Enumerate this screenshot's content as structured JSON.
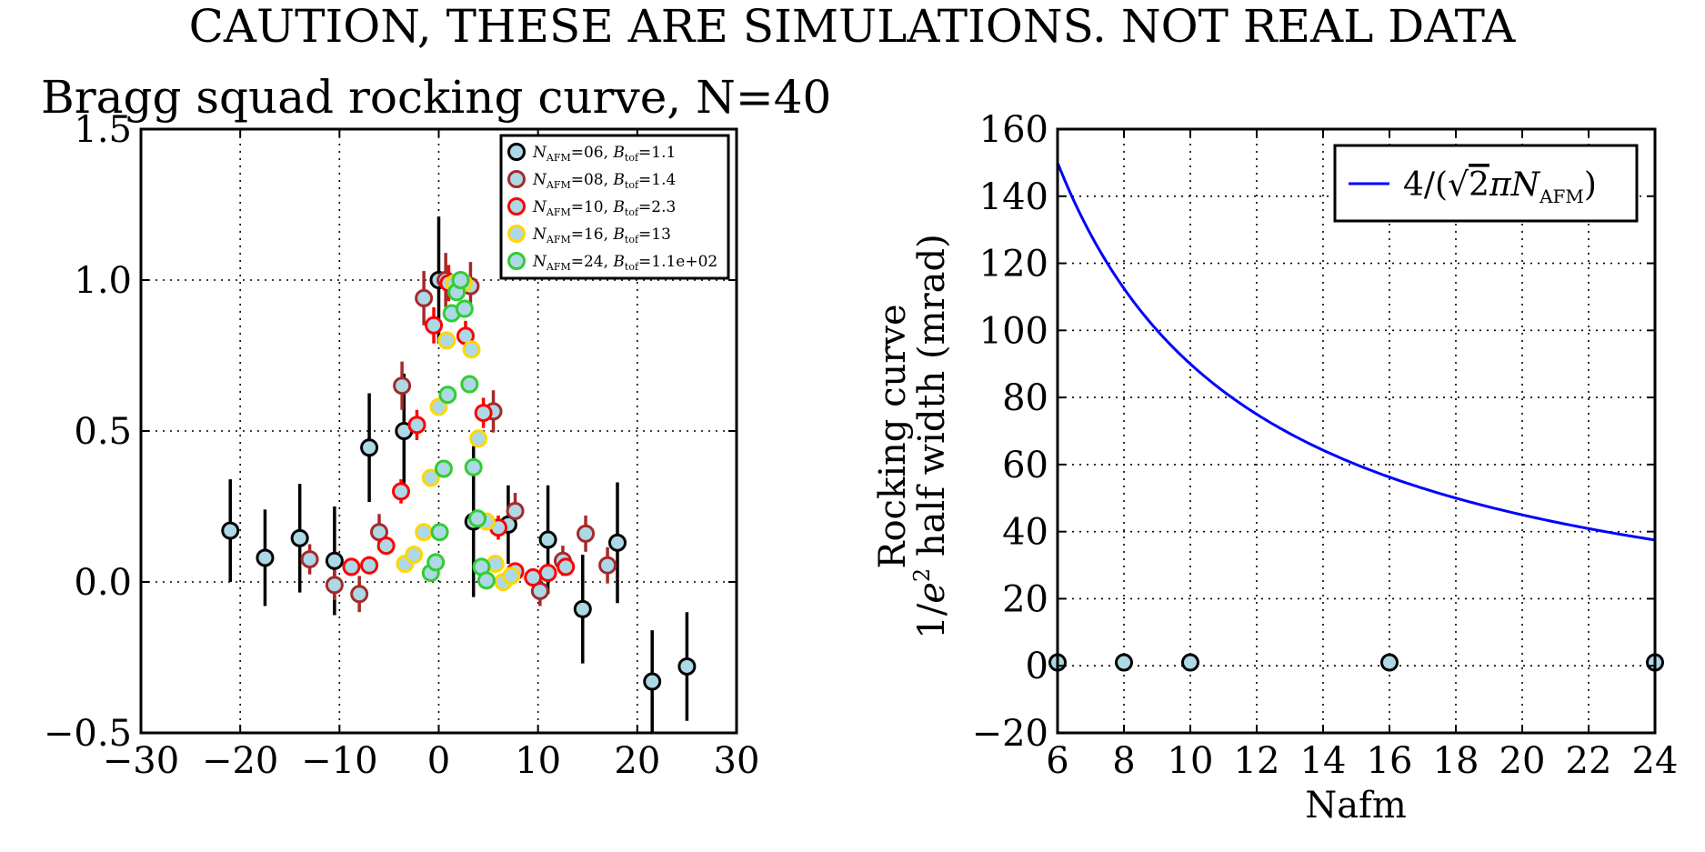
{
  "figure": {
    "suptitle": "CAUTION, THESE ARE SIMULATIONS. NOT REAL DATA"
  },
  "chart_data": [
    {
      "type": "scatter",
      "title": "Bragg squad rocking curve, N=40",
      "xlabel": "",
      "ylabel": "",
      "xlim": [
        -30,
        30
      ],
      "ylim": [
        -0.5,
        1.5
      ],
      "xticks": [
        -30,
        -20,
        -10,
        0,
        10,
        20,
        30
      ],
      "yticks": [
        -0.5,
        0.0,
        0.5,
        1.0,
        1.5
      ],
      "xtick_labels": [
        "−30",
        "−20",
        "−10",
        "0",
        "10",
        "20",
        "30"
      ],
      "ytick_labels": [
        "−0.5",
        "0.0",
        "0.5",
        "1.0",
        "1.5"
      ],
      "grid": true,
      "legend_position": "top-right",
      "series": [
        {
          "name": "N_AFM=06, B_tof=1.1",
          "legend_label": {
            "pre": "N",
            "sub1": "AFM",
            "mid": "=06, ",
            "sym": "B",
            "sub2": "tof",
            "post": "=1.1"
          },
          "edge_color": "#000000",
          "face_color": "#add8e6",
          "points": [
            {
              "x": -21.0,
              "y": 0.17,
              "err": 0.17
            },
            {
              "x": -17.5,
              "y": 0.08,
              "err": 0.16
            },
            {
              "x": -14.0,
              "y": 0.145,
              "err": 0.18
            },
            {
              "x": -10.5,
              "y": 0.07,
              "err": 0.18
            },
            {
              "x": -7.0,
              "y": 0.445,
              "err": 0.18
            },
            {
              "x": -3.5,
              "y": 0.5,
              "err": 0.19
            },
            {
              "x": 0.0,
              "y": 1.0,
              "err": 0.21
            },
            {
              "x": 3.5,
              "y": 0.2,
              "err": 0.25
            },
            {
              "x": 7.0,
              "y": 0.19,
              "err": 0.13
            },
            {
              "x": 11.0,
              "y": 0.14,
              "err": 0.18
            },
            {
              "x": 14.5,
              "y": -0.09,
              "err": 0.18
            },
            {
              "x": 18.0,
              "y": 0.13,
              "err": 0.2
            },
            {
              "x": 21.5,
              "y": -0.33,
              "err": 0.17
            },
            {
              "x": 25.0,
              "y": -0.28,
              "err": 0.18
            }
          ]
        },
        {
          "name": "N_AFM=08, B_tof=1.4",
          "legend_label": {
            "pre": "N",
            "sub1": "AFM",
            "mid": "=08, ",
            "sym": "B",
            "sub2": "tof",
            "post": "=1.4"
          },
          "edge_color": "#a52a2a",
          "face_color": "#add8e6",
          "points": [
            {
              "x": -13.0,
              "y": 0.075,
              "err": 0.05
            },
            {
              "x": -10.5,
              "y": -0.01,
              "err": 0.05
            },
            {
              "x": -8.0,
              "y": -0.04,
              "err": 0.06
            },
            {
              "x": -6.0,
              "y": 0.165,
              "err": 0.06
            },
            {
              "x": -3.7,
              "y": 0.65,
              "err": 0.08
            },
            {
              "x": -1.5,
              "y": 0.94,
              "err": 0.09
            },
            {
              "x": 0.7,
              "y": 1.0,
              "err": 0.09
            },
            {
              "x": 3.2,
              "y": 0.98,
              "err": 0.08
            },
            {
              "x": 5.5,
              "y": 0.565,
              "err": 0.07
            },
            {
              "x": 7.7,
              "y": 0.235,
              "err": 0.06
            },
            {
              "x": 10.2,
              "y": -0.03,
              "err": 0.05
            },
            {
              "x": 12.5,
              "y": 0.07,
              "err": 0.05
            },
            {
              "x": 14.8,
              "y": 0.16,
              "err": 0.06
            },
            {
              "x": 17.0,
              "y": 0.055,
              "err": 0.06
            }
          ]
        },
        {
          "name": "N_AFM=10, B_tof=2.3",
          "legend_label": {
            "pre": "N",
            "sub1": "AFM",
            "mid": "=10, ",
            "sym": "B",
            "sub2": "tof",
            "post": "=2.3"
          },
          "edge_color": "#ff0000",
          "face_color": "#add8e6",
          "points": [
            {
              "x": -8.8,
              "y": 0.05,
              "err": 0.03
            },
            {
              "x": -7.0,
              "y": 0.055,
              "err": 0.03
            },
            {
              "x": -5.3,
              "y": 0.12,
              "err": 0.03
            },
            {
              "x": -3.8,
              "y": 0.3,
              "err": 0.04
            },
            {
              "x": -2.2,
              "y": 0.52,
              "err": 0.05
            },
            {
              "x": -0.5,
              "y": 0.85,
              "err": 0.06
            },
            {
              "x": 1.0,
              "y": 0.99,
              "err": 0.06
            },
            {
              "x": 2.7,
              "y": 0.815,
              "err": 0.05
            },
            {
              "x": 4.5,
              "y": 0.56,
              "err": 0.05
            },
            {
              "x": 6.0,
              "y": 0.18,
              "err": 0.04
            },
            {
              "x": 7.7,
              "y": 0.035,
              "err": 0.03
            },
            {
              "x": 9.5,
              "y": 0.015,
              "err": 0.03
            },
            {
              "x": 11.0,
              "y": 0.03,
              "err": 0.03
            },
            {
              "x": 12.8,
              "y": 0.05,
              "err": 0.03
            }
          ]
        },
        {
          "name": "N_AFM=16, B_tof=13",
          "legend_label": {
            "pre": "N",
            "sub1": "AFM",
            "mid": "=16, ",
            "sym": "B",
            "sub2": "tof",
            "post": "=13"
          },
          "edge_color": "#ffd700",
          "face_color": "#add8e6",
          "points": [
            {
              "x": -3.4,
              "y": 0.06,
              "err": 0.01
            },
            {
              "x": -2.5,
              "y": 0.09,
              "err": 0.01
            },
            {
              "x": -1.5,
              "y": 0.165,
              "err": 0.01
            },
            {
              "x": -0.8,
              "y": 0.345,
              "err": 0.01
            },
            {
              "x": 0.0,
              "y": 0.58,
              "err": 0.01
            },
            {
              "x": 0.8,
              "y": 0.8,
              "err": 0.01
            },
            {
              "x": 1.6,
              "y": 0.99,
              "err": 0.01
            },
            {
              "x": 2.5,
              "y": 0.99,
              "err": 0.01
            },
            {
              "x": 3.3,
              "y": 0.77,
              "err": 0.01
            },
            {
              "x": 4.0,
              "y": 0.475,
              "err": 0.01
            },
            {
              "x": 4.8,
              "y": 0.2,
              "err": 0.01
            },
            {
              "x": 5.7,
              "y": 0.06,
              "err": 0.01
            },
            {
              "x": 6.5,
              "y": 0.0,
              "err": 0.01
            },
            {
              "x": 7.3,
              "y": 0.02,
              "err": 0.01
            }
          ]
        },
        {
          "name": "N_AFM=24, B_tof=1.1e+02",
          "legend_label": {
            "pre": "N",
            "sub1": "AFM",
            "mid": "=24, ",
            "sym": "B",
            "sub2": "tof",
            "post": "=1.1e+02"
          },
          "edge_color": "#32cd32",
          "face_color": "#add8e6",
          "points": [
            {
              "x": -0.8,
              "y": 0.03,
              "err": 0.005
            },
            {
              "x": -0.3,
              "y": 0.065,
              "err": 0.005
            },
            {
              "x": 0.1,
              "y": 0.165,
              "err": 0.005
            },
            {
              "x": 0.5,
              "y": 0.375,
              "err": 0.005
            },
            {
              "x": 0.9,
              "y": 0.62,
              "err": 0.005
            },
            {
              "x": 1.3,
              "y": 0.89,
              "err": 0.005
            },
            {
              "x": 1.8,
              "y": 0.96,
              "err": 0.005
            },
            {
              "x": 2.2,
              "y": 1.0,
              "err": 0.005
            },
            {
              "x": 2.6,
              "y": 0.905,
              "err": 0.005
            },
            {
              "x": 3.1,
              "y": 0.655,
              "err": 0.005
            },
            {
              "x": 3.5,
              "y": 0.38,
              "err": 0.005
            },
            {
              "x": 3.9,
              "y": 0.21,
              "err": 0.005
            },
            {
              "x": 4.3,
              "y": 0.05,
              "err": 0.005
            },
            {
              "x": 4.8,
              "y": 0.005,
              "err": 0.005
            }
          ]
        }
      ]
    },
    {
      "type": "line",
      "title": "",
      "xlabel": "Nafm",
      "ylabel_lines": [
        "Rocking curve",
        "1/e² half width (mrad)"
      ],
      "ylabel_parts": {
        "line1": "Rocking curve",
        "frac": "1/",
        "e": "e",
        "exp": "2",
        "rest": " half width (mrad)"
      },
      "xlim": [
        6,
        24
      ],
      "ylim": [
        -20,
        160
      ],
      "xticks": [
        6,
        8,
        10,
        12,
        14,
        16,
        18,
        20,
        22,
        24
      ],
      "yticks": [
        -20,
        0,
        20,
        40,
        60,
        80,
        100,
        120,
        140,
        160
      ],
      "xtick_labels": [
        "6",
        "8",
        "10",
        "12",
        "14",
        "16",
        "18",
        "20",
        "22",
        "24"
      ],
      "ytick_labels": [
        "−20",
        "0",
        "20",
        "40",
        "60",
        "80",
        "100",
        "120",
        "140",
        "160"
      ],
      "grid": true,
      "legend_position": "top-right",
      "legend_label": {
        "pre": "4/(",
        "sqrt": "√",
        "two": "2",
        "pi": "π",
        "n": "N",
        "sub": "AFM",
        "post": ")"
      },
      "line": {
        "name": "4/(√2πN_AFM)",
        "color": "#0000ff",
        "formula_coefficient": 1.2732
      },
      "scatter": {
        "edge_color": "#000000",
        "face_color": "#add8e6",
        "points": [
          {
            "x": 6,
            "y": 1
          },
          {
            "x": 8,
            "y": 1
          },
          {
            "x": 10,
            "y": 1
          },
          {
            "x": 16,
            "y": 1
          },
          {
            "x": 24,
            "y": 1
          }
        ]
      }
    }
  ]
}
